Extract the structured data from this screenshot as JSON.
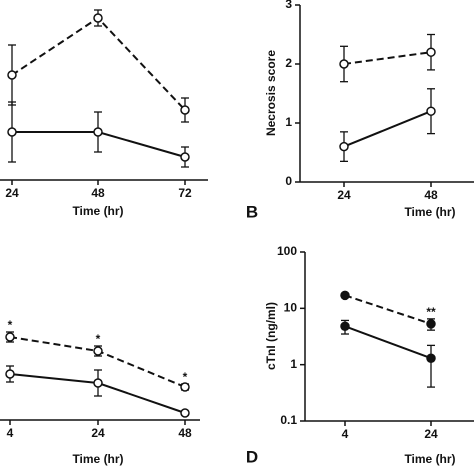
{
  "chart_data": [
    {
      "type": "line",
      "categories": [
        "24",
        "48",
        "72"
      ],
      "xlabel": "Time (hr)",
      "ylim": [
        0,
        175
      ],
      "marker": "open",
      "series": [
        {
          "color": "#111111",
          "dashed": true,
          "values": [
            105,
            162,
            70
          ],
          "errors": [
            30,
            8,
            12
          ]
        },
        {
          "color": "#111111",
          "dashed": false,
          "values": [
            48,
            48,
            23
          ],
          "errors": [
            30,
            20,
            10
          ]
        }
      ]
    },
    {
      "type": "line",
      "panel_label": "B",
      "categories": [
        "24",
        "48"
      ],
      "xlabel": "Time (hr)",
      "ylabel": "Necrosis score",
      "ylim": [
        0,
        3
      ],
      "yticks": [
        0,
        1,
        2,
        3
      ],
      "marker": "open",
      "series": [
        {
          "color": "#111111",
          "dashed": true,
          "values": [
            2.0,
            2.2
          ],
          "errors": [
            0.3,
            0.3
          ]
        },
        {
          "color": "#111111",
          "dashed": false,
          "values": [
            0.6,
            1.2
          ],
          "errors": [
            0.25,
            0.38
          ]
        }
      ]
    },
    {
      "type": "line",
      "categories": [
        "4",
        "24",
        "48"
      ],
      "xlabel": "Time (hr)",
      "ylim": [
        0,
        170
      ],
      "marker": "open",
      "annotations": [
        "*",
        "*",
        "*"
      ],
      "series": [
        {
          "color": "#111111",
          "dashed": true,
          "values": [
            83,
            69,
            33
          ],
          "errors": [
            5,
            5,
            3
          ]
        },
        {
          "color": "#111111",
          "dashed": false,
          "values": [
            46,
            37,
            7
          ],
          "errors": [
            8,
            13,
            2
          ]
        }
      ]
    },
    {
      "type": "line",
      "panel_label": "D",
      "categories": [
        "4",
        "24"
      ],
      "xlabel": "Time (hr)",
      "ylabel": "cTnI (ng/ml)",
      "ylim": [
        0.1,
        100
      ],
      "yticks": [
        0.1,
        1,
        10,
        100
      ],
      "log_scale": true,
      "marker": "filled",
      "annotations": [
        null,
        "**"
      ],
      "series": [
        {
          "color": "#111111",
          "dashed": true,
          "values": [
            17,
            5.3
          ],
          "errors": [
            1,
            1.2
          ]
        },
        {
          "color": "#111111",
          "dashed": false,
          "values": [
            4.8,
            1.3
          ],
          "errors": [
            1.3,
            0.9
          ]
        }
      ]
    }
  ]
}
